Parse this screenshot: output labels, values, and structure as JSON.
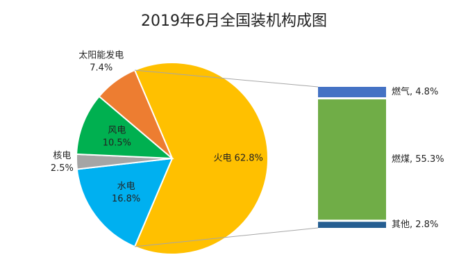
{
  "chart_data": {
    "type": "pie",
    "title": "2019年6月全国装机构成图",
    "slices": [
      {
        "label": "火电",
        "value": 62.8,
        "text": "62.8%",
        "color": "#FFC000"
      },
      {
        "label": "水电",
        "value": 16.8,
        "text": "16.8%",
        "color": "#00B0F0"
      },
      {
        "label": "核电",
        "value": 2.5,
        "text": "2.5%",
        "color": "#A5A5A5"
      },
      {
        "label": "风电",
        "value": 10.5,
        "text": "10.5%",
        "color": "#00B050"
      },
      {
        "label": "太阳能发电",
        "value": 7.4,
        "text": "7.4%",
        "color": "#ED7D31"
      }
    ],
    "breakdown": {
      "of": "火电",
      "type": "stacked-bar",
      "segments": [
        {
          "label": "燃气",
          "value": 4.8,
          "text": "燃气, 4.8%",
          "color": "#4472C4"
        },
        {
          "label": "燃煤",
          "value": 55.3,
          "text": "燃煤, 55.3%",
          "color": "#70AD47"
        },
        {
          "label": "其他",
          "value": 2.8,
          "text": "其他, 2.8%",
          "color": "#255E91"
        }
      ]
    },
    "legend": "none"
  }
}
